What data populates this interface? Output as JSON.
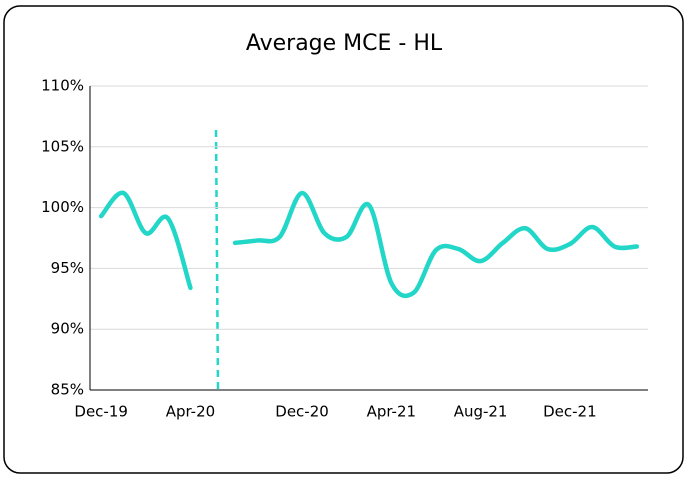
{
  "chart_data": {
    "type": "line",
    "title": "Average MCE - HL",
    "categories": [
      "Dec-19",
      null,
      null,
      null,
      "Apr-20",
      null,
      null,
      null,
      null,
      "Dec-20",
      null,
      null,
      null,
      "Apr-21",
      null,
      null,
      null,
      "Aug-21",
      null,
      null,
      null,
      "Dec-21",
      null,
      null,
      null
    ],
    "series": [
      {
        "name": "Average MCE - HL",
        "color": "#22d6c8",
        "values": [
          99.3,
          101.2,
          97.9,
          99.1,
          93.4,
          null,
          97.1,
          97.3,
          97.6,
          101.2,
          97.9,
          97.6,
          100.2,
          93.8,
          93.0,
          96.5,
          96.6,
          95.6,
          97.1,
          98.3,
          96.6,
          97.0,
          98.4,
          96.8,
          96.8
        ]
      }
    ],
    "ylim": [
      85,
      110
    ],
    "yticks": [
      {
        "value": 85,
        "label": "85%"
      },
      {
        "value": 90,
        "label": "90%"
      },
      {
        "value": 95,
        "label": "95%"
      },
      {
        "value": 100,
        "label": "100%"
      },
      {
        "value": 105,
        "label": "105%"
      },
      {
        "value": 110,
        "label": "110%"
      }
    ],
    "grid": true
  }
}
